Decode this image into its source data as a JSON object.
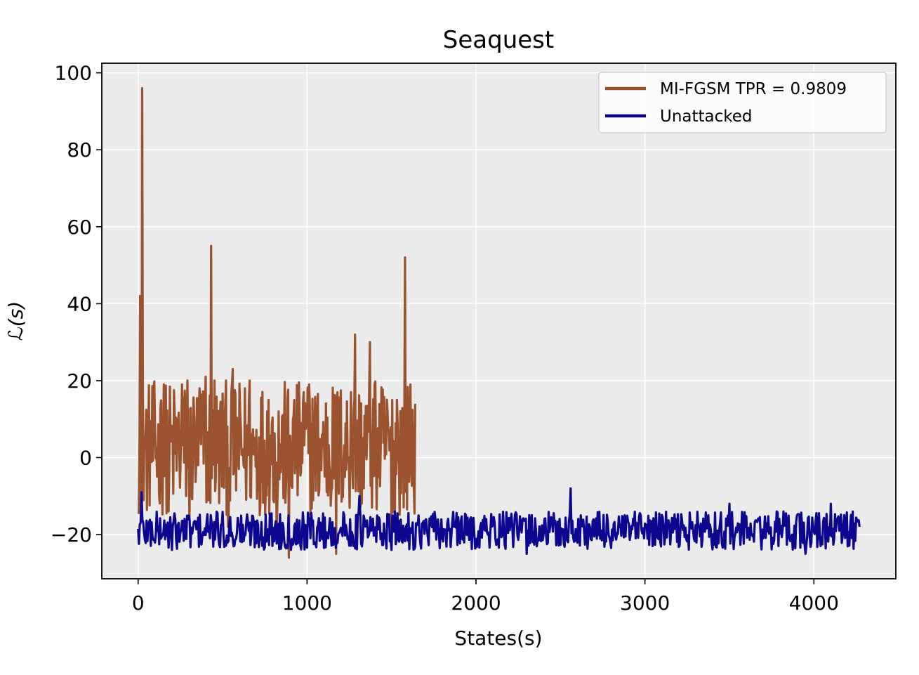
{
  "chart_data": {
    "type": "line",
    "title": "Seaquest",
    "xlabel": "States(s)",
    "ylabel": "ℒ(s)",
    "xlim": [
      -215,
      4485
    ],
    "ylim": [
      -31.5,
      102.5
    ],
    "xticks": [
      0,
      1000,
      2000,
      3000,
      4000
    ],
    "xtick_labels": [
      "0",
      "1000",
      "2000",
      "3000",
      "4000"
    ],
    "yticks": [
      -20,
      0,
      20,
      40,
      60,
      80,
      100
    ],
    "ytick_labels": [
      "−20",
      "0",
      "20",
      "40",
      "60",
      "80",
      "100"
    ],
    "grid": true,
    "legend_position": "top-right",
    "series": [
      {
        "name": "MI-FGSM TPR = 0.9809",
        "color": "#9a532e",
        "x_start": 0,
        "x_end": 1640,
        "range": [
          -25,
          96
        ],
        "typical_range": [
          -15,
          20
        ],
        "spikes": [
          {
            "x": 10,
            "y": 42
          },
          {
            "x": 25,
            "y": 96
          },
          {
            "x": 60,
            "y": 5
          },
          {
            "x": 130,
            "y": 13
          },
          {
            "x": 150,
            "y": 19
          },
          {
            "x": 260,
            "y": 19
          },
          {
            "x": 290,
            "y": 20
          },
          {
            "x": 365,
            "y": 18
          },
          {
            "x": 400,
            "y": 21
          },
          {
            "x": 430,
            "y": 55
          },
          {
            "x": 450,
            "y": 20
          },
          {
            "x": 560,
            "y": 23
          },
          {
            "x": 660,
            "y": 20
          },
          {
            "x": 770,
            "y": 15
          },
          {
            "x": 980,
            "y": 17
          },
          {
            "x": 1010,
            "y": 19
          },
          {
            "x": 1180,
            "y": 17
          },
          {
            "x": 1260,
            "y": 17
          },
          {
            "x": 1285,
            "y": 32
          },
          {
            "x": 1370,
            "y": 30
          },
          {
            "x": 1400,
            "y": 19
          },
          {
            "x": 1530,
            "y": 15
          },
          {
            "x": 1580,
            "y": 52
          },
          {
            "x": 1610,
            "y": 19
          }
        ],
        "dips": [
          {
            "x": 20,
            "y": -15
          },
          {
            "x": 180,
            "y": -14
          },
          {
            "x": 305,
            "y": -16
          },
          {
            "x": 530,
            "y": -18
          },
          {
            "x": 820,
            "y": -20
          },
          {
            "x": 890,
            "y": -26
          },
          {
            "x": 1170,
            "y": -25
          },
          {
            "x": 1500,
            "y": -20
          }
        ],
        "end_value": 14
      },
      {
        "name": "Unattacked",
        "color": "#0d068f",
        "x_start": 0,
        "x_end": 4270,
        "range": [
          -25,
          -8
        ],
        "typical_range": [
          -24,
          -14
        ],
        "spikes": [
          {
            "x": 20,
            "y": -9
          },
          {
            "x": 1310,
            "y": -10
          },
          {
            "x": 2560,
            "y": -8
          },
          {
            "x": 3500,
            "y": -12
          },
          {
            "x": 4100,
            "y": -12
          }
        ],
        "dips": [
          {
            "x": 200,
            "y": -24
          },
          {
            "x": 1500,
            "y": -24
          },
          {
            "x": 2300,
            "y": -25
          },
          {
            "x": 3950,
            "y": -25
          }
        ],
        "end_value": -18
      }
    ]
  }
}
